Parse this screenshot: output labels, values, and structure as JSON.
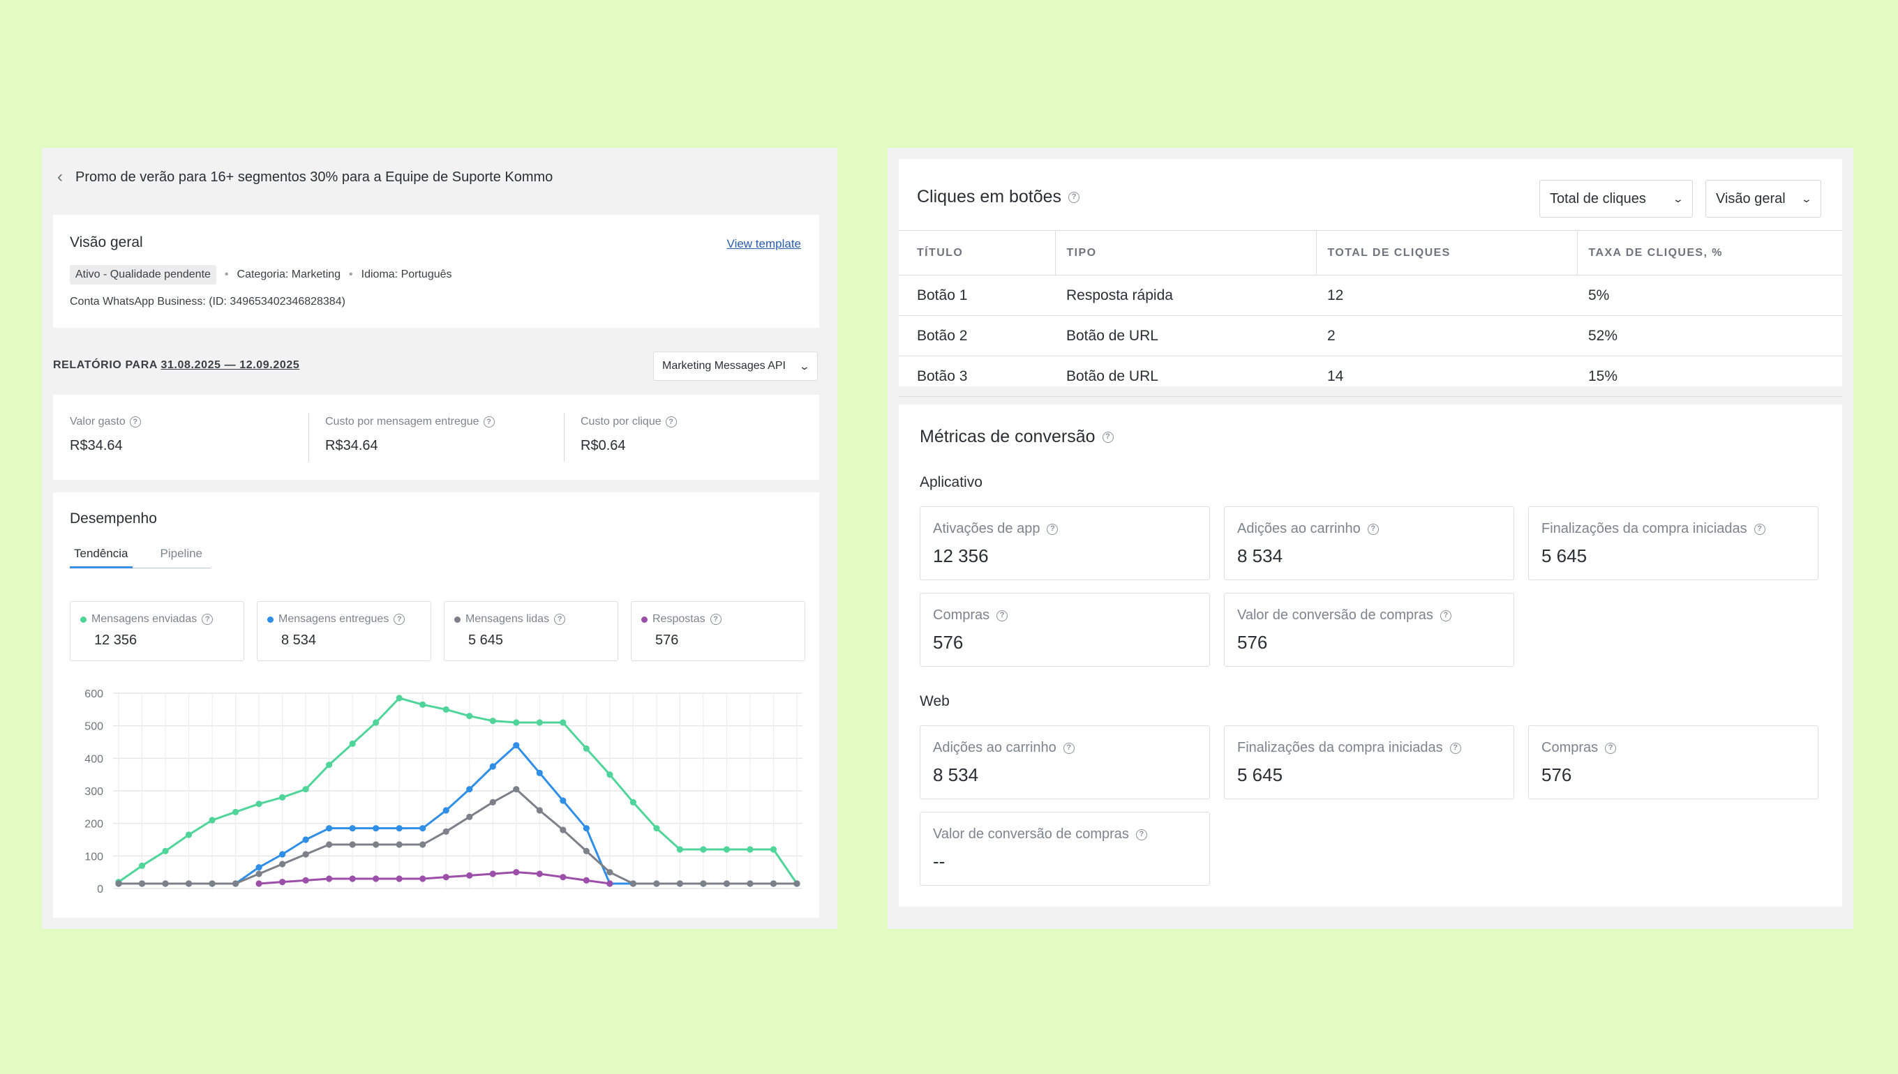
{
  "left": {
    "header_title": "Promo de verão para 16+ segmentos 30% para a Equipe de Suporte Kommo",
    "overview": {
      "title": "Visão geral",
      "view_template": "View template",
      "status": "Ativo - Qualidade pendente",
      "category": "Categoria: Marketing",
      "language": "Idioma: Português",
      "account": "Conta WhatsApp Business: (ID: 349653402346828384)"
    },
    "report": {
      "label": "RELATÓRIO PARA",
      "range": "31.08.2025 — 12.09.2025",
      "api_select": "Marketing Messages API"
    },
    "costs": [
      {
        "label": "Valor gasto",
        "value": "R$34.64"
      },
      {
        "label": "Custo por mensagem entregue",
        "value": "R$34.64"
      },
      {
        "label": "Custo por clique",
        "value": "R$0.64"
      }
    ],
    "performance": {
      "title": "Desempenho",
      "tabs": [
        "Tendência",
        "Pipeline"
      ],
      "active_tab": "Tendência",
      "legend": [
        {
          "label": "Mensagens enviadas",
          "value": "12 356",
          "color": "#4fd49a"
        },
        {
          "label": "Mensagens entregues",
          "value": "8 534",
          "color": "#2f8ee6"
        },
        {
          "label": "Mensagens lidas",
          "value": "5 645",
          "color": "#7c8088"
        },
        {
          "label": "Respostas",
          "value": "576",
          "color": "#9b4fa8"
        }
      ]
    }
  },
  "chart_data": {
    "type": "line",
    "ylim": [
      0,
      600
    ],
    "yticks": [
      "600",
      "500",
      "400",
      "300",
      "200",
      "100",
      "0"
    ],
    "x": [
      1,
      2,
      3,
      4,
      5,
      6,
      7,
      8,
      9,
      10,
      11,
      12,
      13,
      14,
      15,
      16,
      17,
      18,
      19,
      20,
      21,
      22,
      23,
      24,
      25,
      26,
      27,
      28,
      29,
      30
    ],
    "series": [
      {
        "name": "Mensagens enviadas",
        "color": "#4fd49a",
        "values": [
          20,
          70,
          115,
          165,
          210,
          235,
          260,
          280,
          305,
          380,
          445,
          510,
          585,
          565,
          550,
          530,
          515,
          510,
          510,
          510,
          430,
          350,
          265,
          185,
          120,
          120,
          120,
          120,
          120,
          15
        ]
      },
      {
        "name": "Mensagens entregues",
        "color": "#2f8ee6",
        "values": [
          15,
          15,
          15,
          15,
          15,
          15,
          65,
          105,
          150,
          185,
          185,
          185,
          185,
          185,
          240,
          305,
          375,
          440,
          355,
          270,
          185,
          15,
          15,
          15,
          15,
          15,
          15,
          15,
          15,
          15
        ]
      },
      {
        "name": "Mensagens lidas",
        "color": "#7c8088",
        "values": [
          15,
          15,
          15,
          15,
          15,
          15,
          45,
          75,
          105,
          135,
          135,
          135,
          135,
          135,
          175,
          220,
          265,
          305,
          240,
          180,
          115,
          50,
          15,
          15,
          15,
          15,
          15,
          15,
          15,
          15
        ]
      },
      {
        "name": "Respostas",
        "color": "#9b4fa8",
        "values": [
          null,
          null,
          null,
          null,
          null,
          null,
          15,
          20,
          25,
          30,
          30,
          30,
          30,
          30,
          35,
          40,
          45,
          50,
          45,
          35,
          25,
          15,
          null,
          null,
          null,
          null,
          null,
          null,
          null,
          null
        ]
      }
    ]
  },
  "right": {
    "clicks": {
      "title": "Cliques em botões",
      "select1": "Total de cliques",
      "select2": "Visão geral",
      "columns": [
        "TÍTULO",
        "TIPO",
        "TOTAL DE CLIQUES",
        "TAXA DE CLIQUES, %"
      ],
      "rows": [
        [
          "Botão 1",
          "Resposta rápida",
          "12",
          "5%"
        ],
        [
          "Botão 2",
          "Botão de URL",
          "2",
          "52%"
        ],
        [
          "Botão 3",
          "Botão de URL",
          "14",
          "15%"
        ]
      ]
    },
    "conversion": {
      "title": "Métricas de conversão",
      "app_label": "Aplicativo",
      "app_metrics": [
        {
          "label": "Ativações de app",
          "value": "12 356"
        },
        {
          "label": "Adições ao carrinho",
          "value": "8 534"
        },
        {
          "label": "Finalizações da compra iniciadas",
          "value": "5 645"
        },
        {
          "label": "Compras",
          "value": "576"
        },
        {
          "label": "Valor de conversão de compras",
          "value": "576"
        }
      ],
      "web_label": "Web",
      "web_metrics": [
        {
          "label": "Adições ao carrinho",
          "value": "8 534"
        },
        {
          "label": "Finalizações da compra iniciadas",
          "value": "5 645"
        },
        {
          "label": "Compras",
          "value": "576"
        },
        {
          "label": "Valor de conversão de compras",
          "value": "--"
        }
      ]
    }
  }
}
